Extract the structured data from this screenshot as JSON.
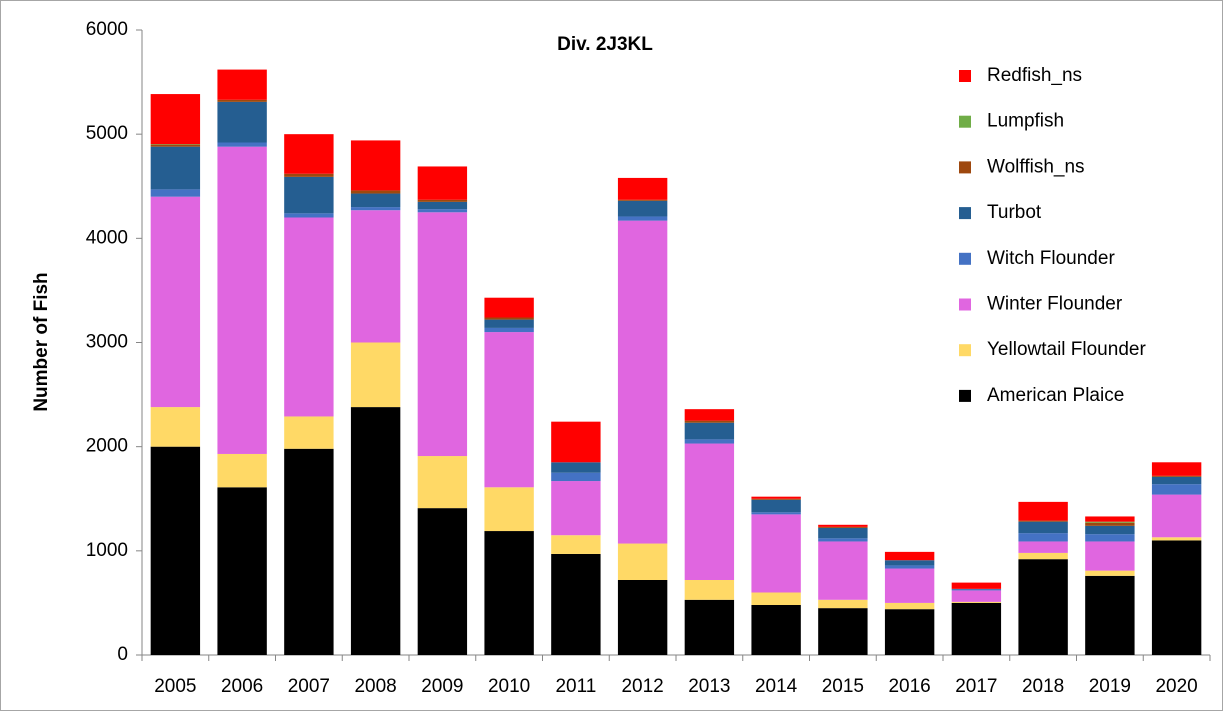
{
  "chart_data": {
    "type": "stacked_bar",
    "title": "Div. 2J3KL",
    "y_label": "Number of Fish",
    "categories": [
      "2005",
      "2006",
      "2007",
      "2008",
      "2009",
      "2010",
      "2011",
      "2012",
      "2013",
      "2014",
      "2015",
      "2016",
      "2017",
      "2018",
      "2019",
      "2020"
    ],
    "ylim": [
      0,
      6000
    ],
    "yticks": [
      0,
      1000,
      2000,
      3000,
      4000,
      5000,
      6000
    ],
    "grid": false,
    "legend": "right",
    "series": [
      {
        "name": "American Plaice",
        "color": "#000000",
        "values": [
          2000,
          1610,
          1980,
          2380,
          1410,
          1190,
          970,
          720,
          530,
          480,
          450,
          440,
          500,
          920,
          760,
          1100
        ]
      },
      {
        "name": "Yellowtail Flounder",
        "color": "#ffd966",
        "values": [
          380,
          320,
          310,
          620,
          500,
          420,
          180,
          350,
          190,
          120,
          80,
          60,
          10,
          60,
          50,
          30
        ]
      },
      {
        "name": "Winter Flounder",
        "color": "#e066e0",
        "values": [
          2020,
          2950,
          1910,
          1270,
          2340,
          1490,
          520,
          3100,
          1310,
          750,
          560,
          330,
          110,
          110,
          280,
          410
        ]
      },
      {
        "name": "Witch Flounder",
        "color": "#4472c4",
        "values": [
          70,
          40,
          40,
          30,
          30,
          40,
          80,
          40,
          40,
          20,
          30,
          30,
          10,
          80,
          70,
          100
        ]
      },
      {
        "name": "Turbot",
        "color": "#255e91",
        "values": [
          410,
          390,
          350,
          130,
          70,
          80,
          100,
          150,
          160,
          120,
          100,
          50,
          5,
          110,
          80,
          70
        ]
      },
      {
        "name": "Wolffish_ns",
        "color": "#9e480e",
        "values": [
          20,
          20,
          30,
          30,
          20,
          20,
          0,
          10,
          20,
          10,
          10,
          0,
          0,
          10,
          30,
          10
        ]
      },
      {
        "name": "Lumpfish",
        "color": "#70ad47",
        "values": [
          5,
          0,
          0,
          0,
          0,
          0,
          0,
          0,
          0,
          0,
          0,
          0,
          0,
          0,
          10,
          0
        ]
      },
      {
        "name": "Redfish_ns",
        "color": "#ff0000",
        "values": [
          480,
          290,
          380,
          480,
          320,
          190,
          390,
          210,
          110,
          20,
          20,
          80,
          60,
          180,
          50,
          130
        ]
      }
    ]
  }
}
